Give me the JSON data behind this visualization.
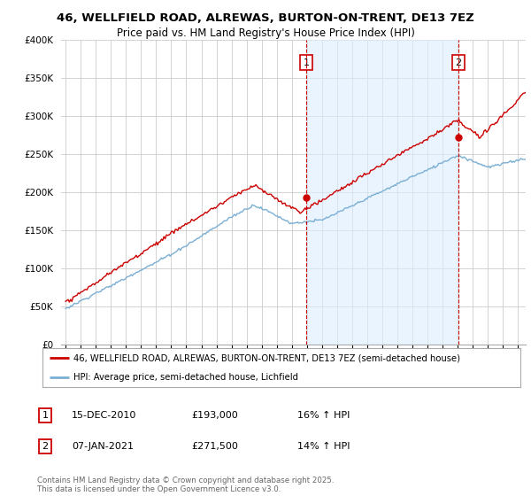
{
  "title": "46, WELLFIELD ROAD, ALREWAS, BURTON-ON-TRENT, DE13 7EZ",
  "subtitle": "Price paid vs. HM Land Registry's House Price Index (HPI)",
  "ylabel_ticks": [
    "£0",
    "£50K",
    "£100K",
    "£150K",
    "£200K",
    "£250K",
    "£300K",
    "£350K",
    "£400K"
  ],
  "ytick_values": [
    0,
    50000,
    100000,
    150000,
    200000,
    250000,
    300000,
    350000,
    400000
  ],
  "ylim": [
    0,
    400000
  ],
  "red_color": "#cc0000",
  "blue_color": "#7bafd4",
  "shade_color": "#ddeeff",
  "marker1_x": 2010.96,
  "marker1_y": 193000,
  "marker2_x": 2021.03,
  "marker2_y": 271500,
  "legend_red_label": "46, WELLFIELD ROAD, ALREWAS, BURTON-ON-TRENT, DE13 7EZ (semi-detached house)",
  "legend_blue_label": "HPI: Average price, semi-detached house, Lichfield",
  "table_rows": [
    {
      "num": "1",
      "date": "15-DEC-2010",
      "price": "£193,000",
      "change": "16% ↑ HPI"
    },
    {
      "num": "2",
      "date": "07-JAN-2021",
      "price": "£271,500",
      "change": "14% ↑ HPI"
    }
  ],
  "footer": "Contains HM Land Registry data © Crown copyright and database right 2025.\nThis data is licensed under the Open Government Licence v3.0.",
  "background_color": "#ffffff",
  "grid_color": "#cccccc",
  "xlim_start": 1995.0,
  "xlim_end": 2025.5
}
